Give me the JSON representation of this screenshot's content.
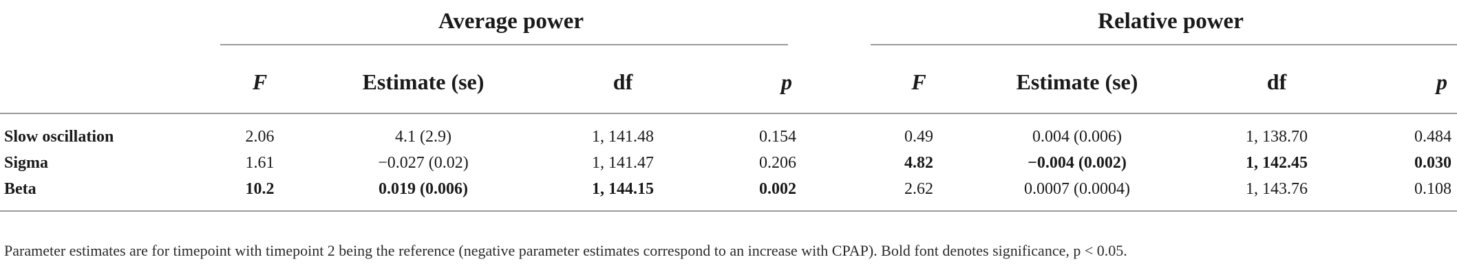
{
  "groups": {
    "average": "Average power",
    "relative": "Relative power"
  },
  "columns": {
    "f": "F",
    "estimate": "Estimate (se)",
    "df": "df",
    "p": "p"
  },
  "rows": [
    {
      "label": "Slow oscillation",
      "avg": {
        "f": "2.06",
        "est": "4.1 (2.9)",
        "df": "1, 141.48",
        "p": "0.154",
        "bold": false
      },
      "rel": {
        "f": "0.49",
        "est": "0.004 (0.006)",
        "df": "1, 138.70",
        "p": "0.484",
        "bold": false
      }
    },
    {
      "label": "Sigma",
      "avg": {
        "f": "1.61",
        "est": "−0.027 (0.02)",
        "df": "1, 141.47",
        "p": "0.206",
        "bold": false
      },
      "rel": {
        "f": "4.82",
        "est": "−0.004 (0.002)",
        "df": "1, 142.45",
        "p": "0.030",
        "bold": true
      }
    },
    {
      "label": "Beta",
      "avg": {
        "f": "10.2",
        "est": "0.019 (0.006)",
        "df": "1, 144.15",
        "p": "0.002",
        "bold": true
      },
      "rel": {
        "f": "2.62",
        "est": "0.0007 (0.0004)",
        "df": "1, 143.76",
        "p": "0.108",
        "bold": false
      }
    }
  ],
  "footnote": "Parameter estimates are for timepoint with timepoint 2 being the reference (negative parameter estimates correspond to an increase with CPAP). Bold font denotes significance, p < 0.05."
}
